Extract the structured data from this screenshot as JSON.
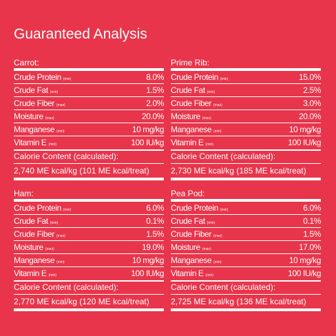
{
  "header": {
    "title": "Guaranteed Analysis"
  },
  "panels": [
    {
      "name": "Carrot:",
      "rows": [
        {
          "label": "Crude Protein",
          "qualifier": "(min)",
          "value": "8.0%"
        },
        {
          "label": "Crude Fat",
          "qualifier": "(min)",
          "value": "1.5%"
        },
        {
          "label": "Crude Fiber",
          "qualifier": "(max)",
          "value": "2.0%"
        },
        {
          "label": "Moisture",
          "qualifier": "(max)",
          "value": "20.0%"
        },
        {
          "label": "Manganese",
          "qualifier": "(min)",
          "value": "10 mg/kg"
        },
        {
          "label": "Vitamin E",
          "qualifier": "(min)",
          "value": "100 IU/kg"
        }
      ],
      "calorie_heading": "Calorie Content (calculated):",
      "calorie_value": "2,740 ME kcal/kg (101 ME kcal/treat)"
    },
    {
      "name": "Prime Rib:",
      "rows": [
        {
          "label": "Crude Protein",
          "qualifier": "(min)",
          "value": "15.0%"
        },
        {
          "label": "Crude Fat",
          "qualifier": "(min)",
          "value": "2.5%"
        },
        {
          "label": "Crude Fiber",
          "qualifier": "(max)",
          "value": "3.0%"
        },
        {
          "label": "Moisture",
          "qualifier": "(max)",
          "value": "20.0%"
        },
        {
          "label": "Manganese",
          "qualifier": "(min)",
          "value": "10 mg/kg"
        },
        {
          "label": "Vitamin E",
          "qualifier": "(min)",
          "value": "100 IU/kg"
        }
      ],
      "calorie_heading": "Calorie Content (calculated):",
      "calorie_value": "2,730 ME kcal/kg (185 ME kcal/treat)"
    },
    {
      "name": "Ham:",
      "rows": [
        {
          "label": "Crude Protein",
          "qualifier": "(min)",
          "value": "6.0%"
        },
        {
          "label": "Crude Fat",
          "qualifier": "(min)",
          "value": "0.1%"
        },
        {
          "label": "Crude Fiber",
          "qualifier": "(max)",
          "value": "1.5%"
        },
        {
          "label": "Moisture",
          "qualifier": "(max)",
          "value": "19.0%"
        },
        {
          "label": "Manganese",
          "qualifier": "(min)",
          "value": "10 mg/kg"
        },
        {
          "label": "Vitamin E",
          "qualifier": "(min)",
          "value": "100 IU/kg"
        }
      ],
      "calorie_heading": "Calorie Content (calculated):",
      "calorie_value": "2,770 ME kcal/kg (120 ME kcal/treat)"
    },
    {
      "name": "Pea Pod:",
      "rows": [
        {
          "label": "Crude Protein",
          "qualifier": "(min)",
          "value": "6.0%"
        },
        {
          "label": "Crude Fat",
          "qualifier": "(min)",
          "value": "0.1%"
        },
        {
          "label": "Crude Fiber",
          "qualifier": "(max)",
          "value": "1.5%"
        },
        {
          "label": "Moisture",
          "qualifier": "(max)",
          "value": "17.0%"
        },
        {
          "label": "Manganese",
          "qualifier": "(min)",
          "value": "10 mg/kg"
        },
        {
          "label": "Vitamin E",
          "qualifier": "(min)",
          "value": "100 IU/kg"
        }
      ],
      "calorie_heading": "Calorie Content (calculated):",
      "calorie_value": "2,725 ME kcal/kg (136 ME kcal/treat)"
    }
  ]
}
